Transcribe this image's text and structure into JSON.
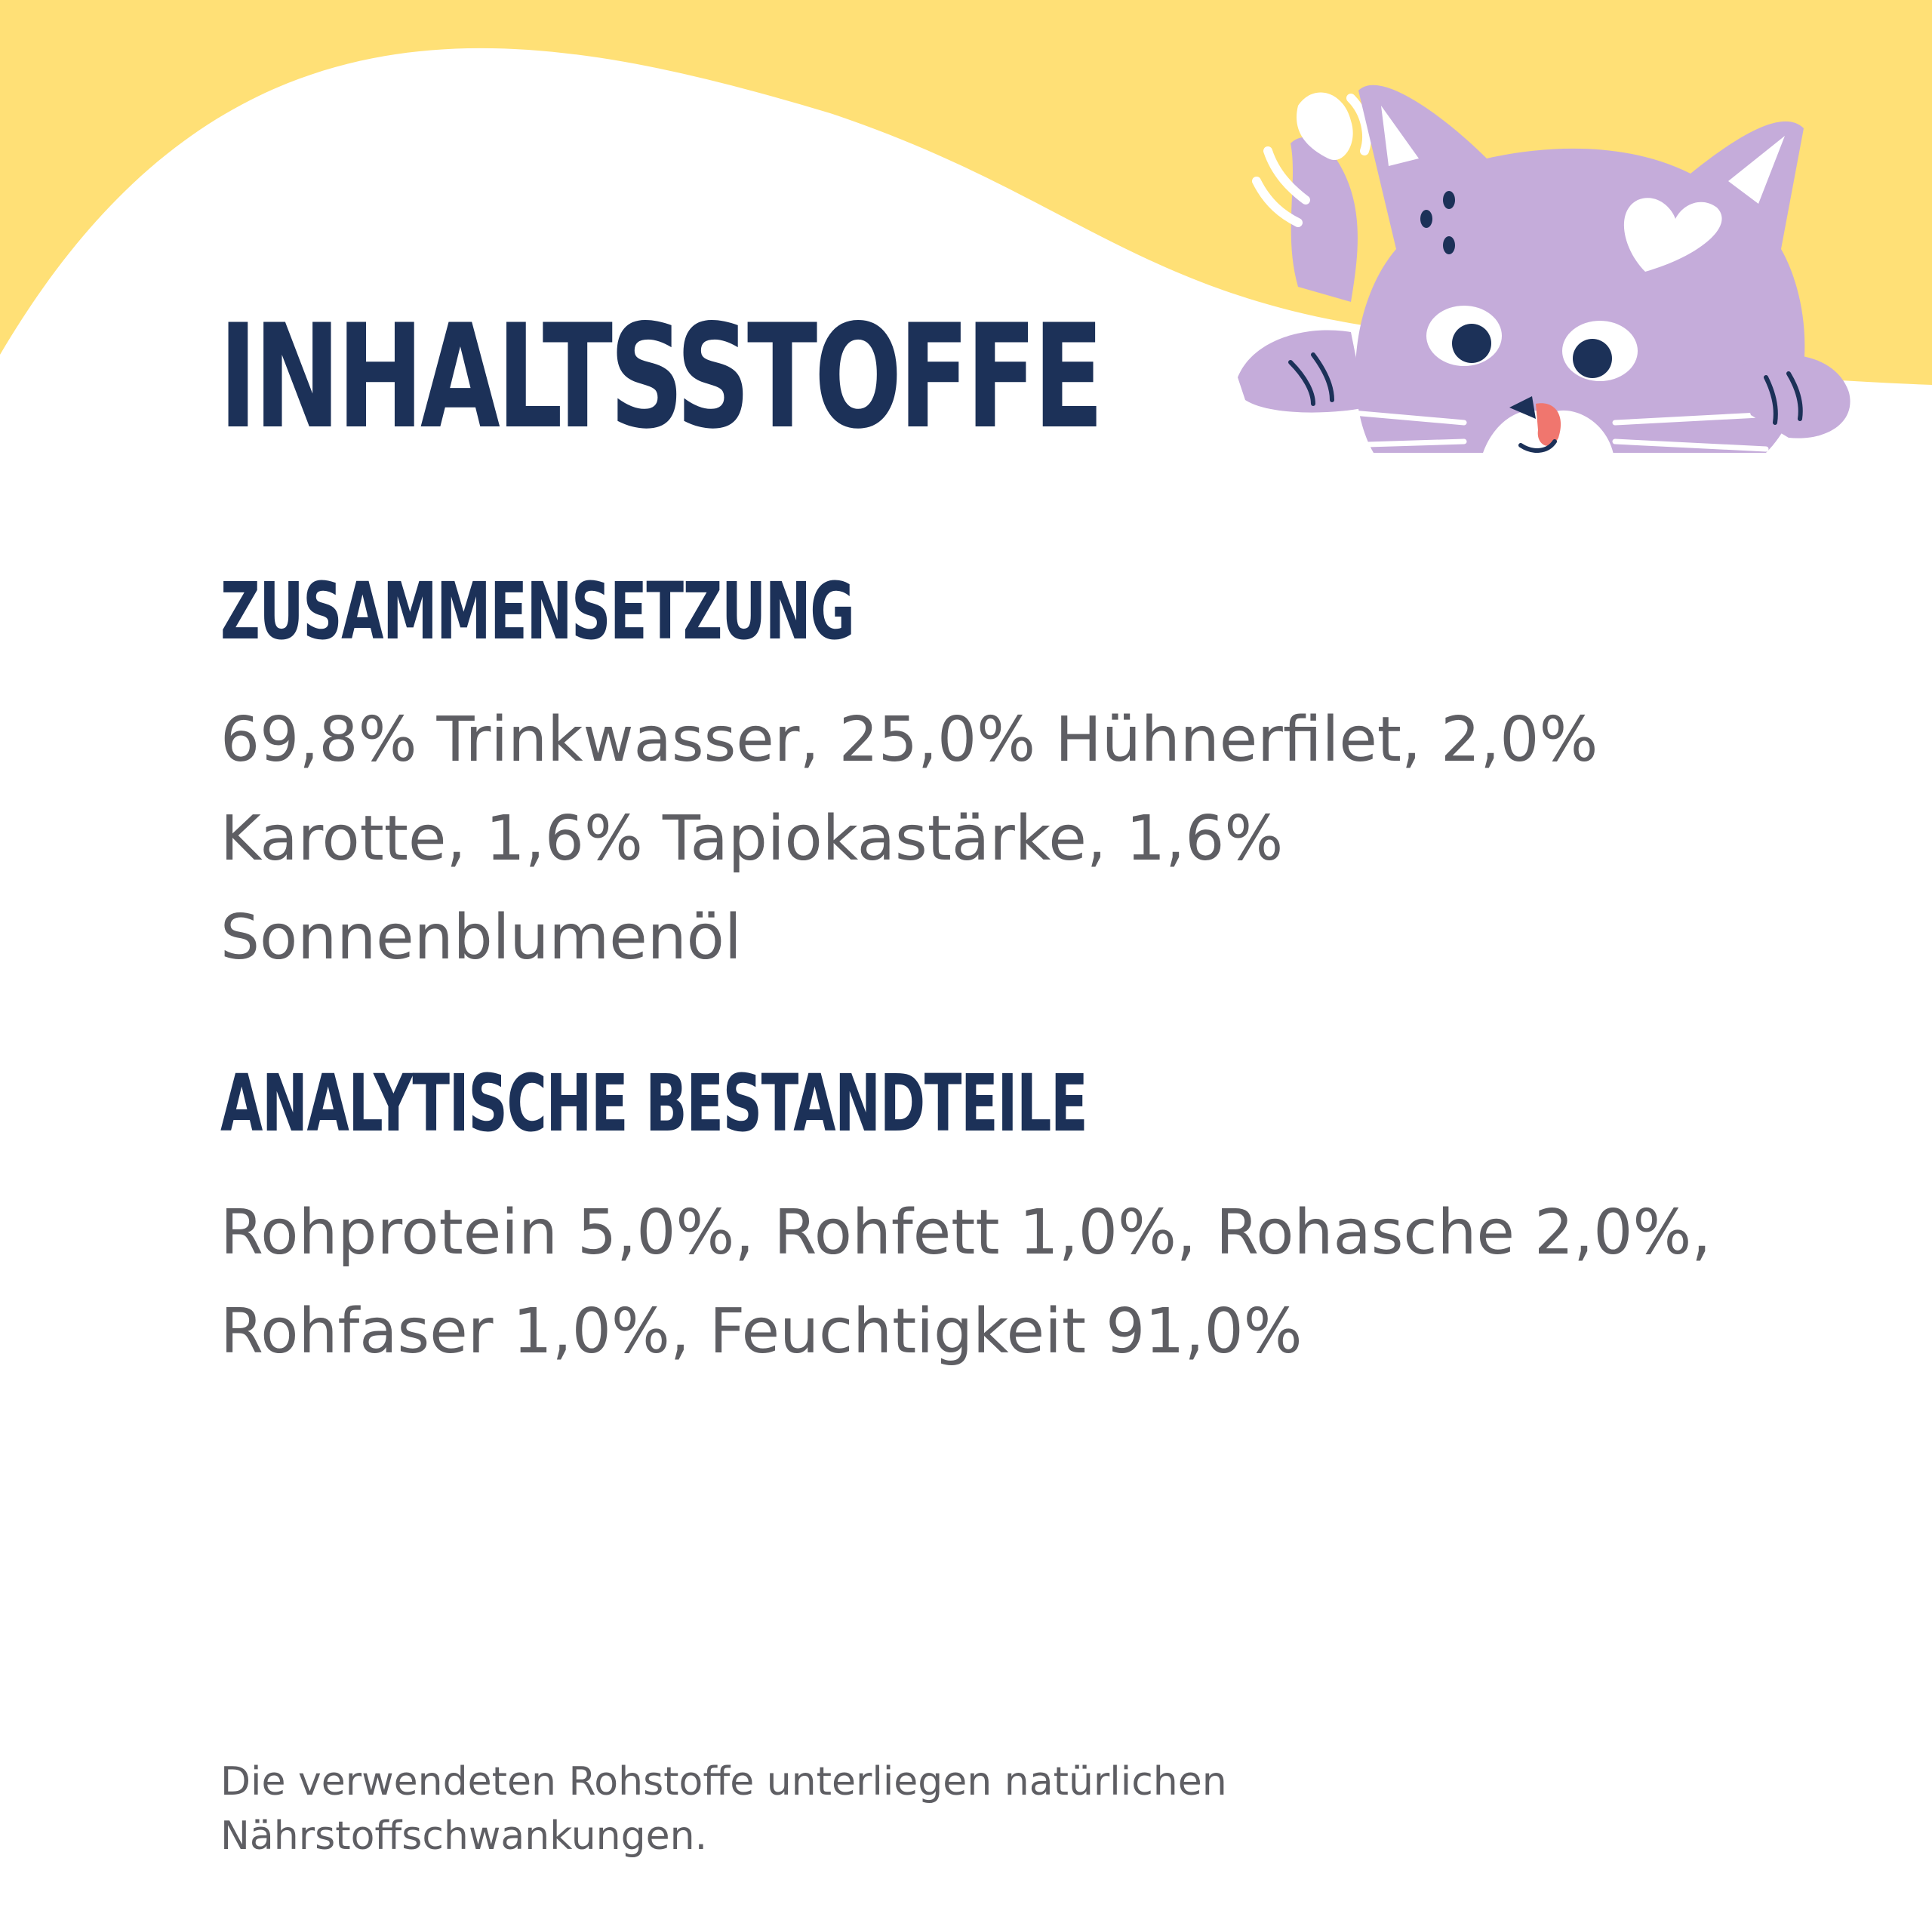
{
  "title": "INHALTSSTOFFE",
  "sections": [
    {
      "heading": "ZUSAMMENSETZUNG",
      "text": "69,8% Trinkwasser, 25,0% Hühnerfilet, 2,0% Karotte, 1,6% Tapiokastärke, 1,6% Sonnenblumenöl"
    },
    {
      "heading": "ANALYTISCHE BESTANDTEILE",
      "text": "Rohprotein 5,0%, Rohfett 1,0%, Rohasche 2,0%, Rohfaser 1,0%, Feuchtigkeit 91,0%"
    }
  ],
  "footnote": "Die verwendeten Rohstoffe unterliegen natürlichen Nährstoffschwankungen.",
  "colors": {
    "background": "#ffffff",
    "wave": "#ffe076",
    "heading": "#1c3158",
    "body": "#5e5e63",
    "cat": "#c5acda"
  },
  "illustration": "cat-illustration"
}
